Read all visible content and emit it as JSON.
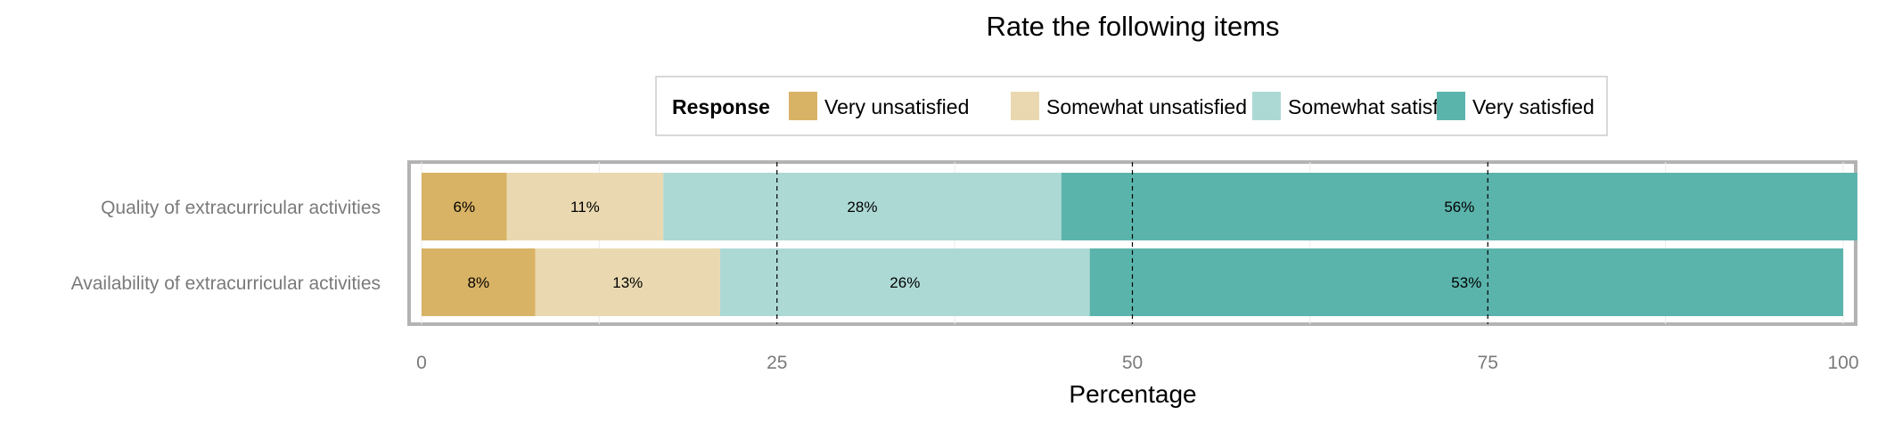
{
  "chart_data": {
    "type": "bar",
    "orientation": "horizontal",
    "stacked": true,
    "title": "Rate the following items",
    "xlabel": "Percentage",
    "ylabel": "",
    "xlim": [
      0,
      100
    ],
    "xticks": [
      0,
      25,
      50,
      75,
      100
    ],
    "reference_lines": [
      25,
      50,
      75
    ],
    "legend": {
      "title": "Response",
      "position": "top"
    },
    "categories": [
      "Quality of extracurricular activities",
      "Availability of extracurricular activities"
    ],
    "series": [
      {
        "name": "Very unsatisfied",
        "color": "#D9B365",
        "values": [
          6,
          8
        ],
        "labels": [
          "6%",
          "8%"
        ]
      },
      {
        "name": "Somewhat unsatisfied",
        "color": "#EAD9B0",
        "values": [
          11,
          13
        ],
        "labels": [
          "11%",
          "13%"
        ]
      },
      {
        "name": "Somewhat satisfied",
        "color": "#ADD9D5",
        "values": [
          28,
          26
        ],
        "labels": [
          "28%",
          "26%"
        ]
      },
      {
        "name": "Very satisfied",
        "color": "#5BB4AC",
        "values": [
          56,
          53
        ],
        "labels": [
          "56%",
          "53%"
        ]
      }
    ]
  }
}
